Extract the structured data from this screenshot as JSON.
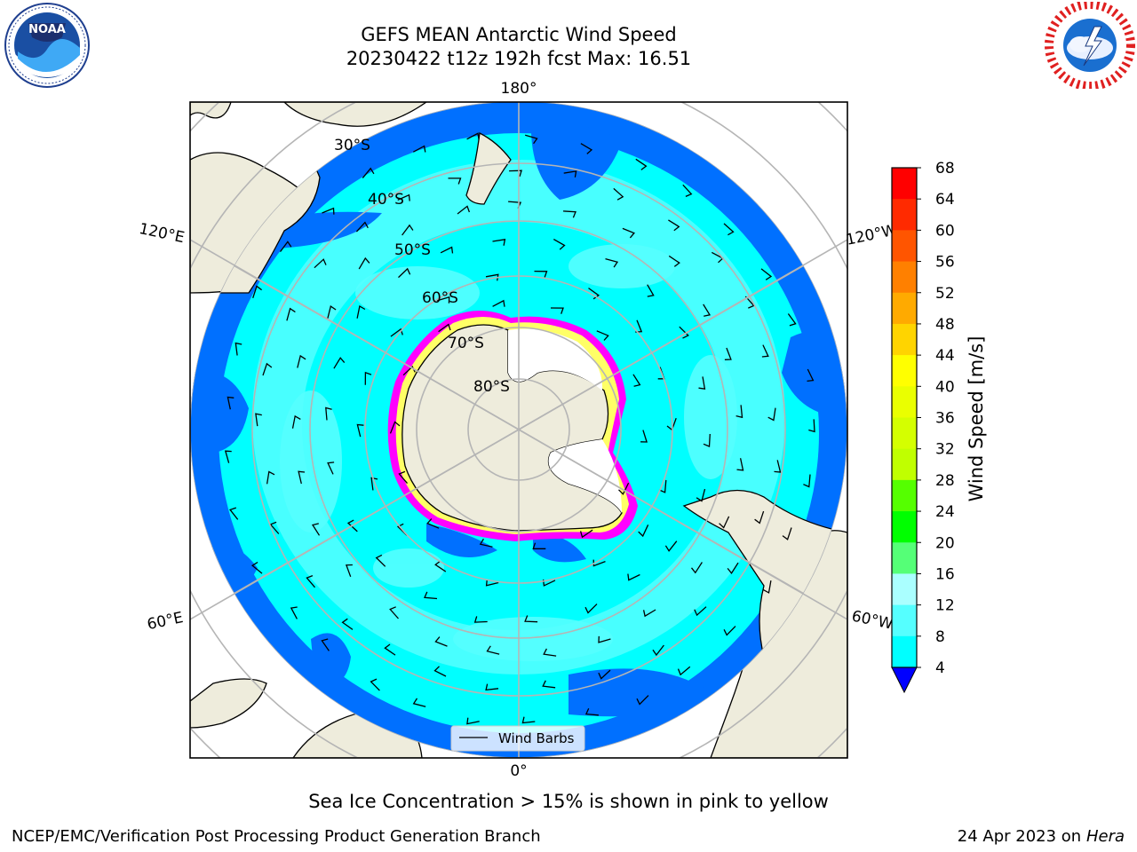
{
  "header": {
    "title_line1": "GEFS MEAN Antarctic Wind Speed",
    "title_line2": "20230422 t12z 192h fcst   Max: 16.51"
  },
  "logos": {
    "left": "noaa-logo",
    "right": "nws-logo"
  },
  "map": {
    "projection": "south-polar-stereographic",
    "lon_labels": {
      "top": "180°",
      "bottom": "0°",
      "upper_left": "120°E",
      "upper_right": "120°W",
      "lower_left": "60°E",
      "lower_right": "60°W"
    },
    "lat_labels": [
      "30°S",
      "40°S",
      "50°S",
      "60°S",
      "70°S",
      "80°S"
    ],
    "legend_label": "Wind Barbs",
    "colors": {
      "land": "#eeecdc",
      "speed_4_8": "#0070ff",
      "speed_8_12": "#00ffff",
      "speed_12_16": "#55ffff",
      "ice_low": "#ff00ff",
      "ice_high": "#ffff66"
    }
  },
  "colorbar": {
    "label": "Wind Speed [m/s]",
    "ticks": [
      "68",
      "64",
      "60",
      "56",
      "52",
      "48",
      "44",
      "40",
      "36",
      "32",
      "28",
      "24",
      "20",
      "16",
      "12",
      "8",
      "4"
    ],
    "bin_colors_top_down": [
      "#ff0000",
      "#ff2a00",
      "#ff5500",
      "#ff8000",
      "#ffaa00",
      "#ffd400",
      "#ffff00",
      "#eaff00",
      "#d4ff00",
      "#c0ff00",
      "#55ff00",
      "#00ff00",
      "#55ff77",
      "#aaffff",
      "#55ffff",
      "#00ffff"
    ],
    "extend_color": "#0000ff",
    "low_bin_color": "#0070ff"
  },
  "caption": "Sea Ice Concentration > 15% is shown in pink to yellow",
  "footer": {
    "left": "NCEP/EMC/Verification Post Processing Product Generation Branch",
    "date": "24 Apr 2023 on ",
    "host": "Hera"
  }
}
